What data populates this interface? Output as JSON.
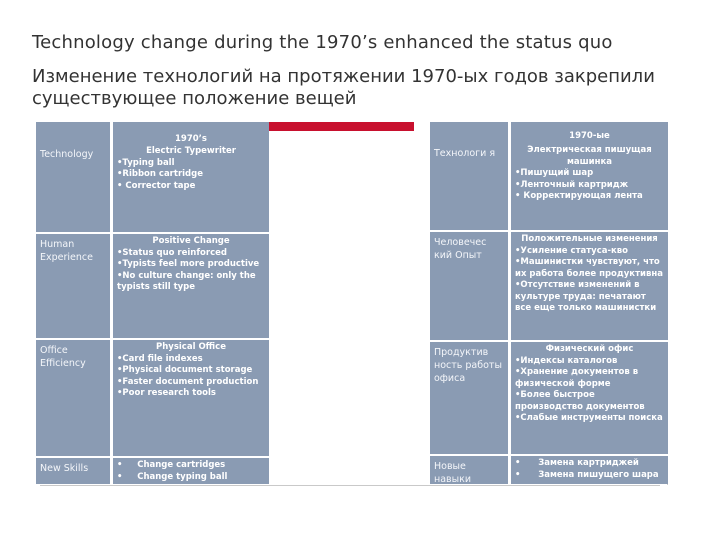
{
  "title_en": "Technology change during the 1970’s enhanced the status quo",
  "title_ru": "Изменение технологий на протяжении 1970-ых годов закрепили существующее положение вещей",
  "table_en": {
    "header": "1970’s",
    "rows": [
      {
        "label": "Technology",
        "heading": "Electric Typewriter",
        "items": [
          "•Typing ball",
          "•Ribbon cartridge",
          "• Corrector tape"
        ]
      },
      {
        "label": "Human Experience",
        "heading": "Positive Change",
        "items": [
          "•Status quo reinforced",
          "•Typists feel more productive",
          "•No culture change: only the typists still type"
        ]
      },
      {
        "label": "Office Efficiency",
        "heading": "Physical Office",
        "items": [
          "•Card file indexes",
          "•Physical document storage",
          "•Faster document production",
          "•Poor research tools"
        ]
      },
      {
        "label": "New Skills",
        "heading": "",
        "items": [
          "•     Change cartridges",
          "•     Change typing ball"
        ]
      }
    ]
  },
  "table_ru": {
    "header": "1970-ые",
    "rows": [
      {
        "label": "Технологи я",
        "heading": "Электрическая пишущая машинка",
        "items": [
          "•Пишущий шар",
          "•Ленточный картридж",
          "• Корректирующая лента"
        ]
      },
      {
        "label": "Человечес кий Опыт",
        "heading": "Положительные изменения",
        "items": [
          "•Усиление статуса-кво",
          "•Машинистки чувствуют, что их работа более продуктивна",
          "•Отсутствие изменений в культуре труда: печатают все еще только машинистки"
        ]
      },
      {
        "label": "Продуктив ность работы офиса",
        "heading": "Физический офис",
        "items": [
          "•Индексы каталогов",
          "•Хранение документов в физической форме",
          "•Более быстрое производство документов",
          "•Слабые инструменты поиска"
        ]
      },
      {
        "label": "Новые навыки",
        "heading": "",
        "items": [
          "•      Замена картриджей",
          "•      Замена пишущего шара"
        ]
      }
    ]
  },
  "colors": {
    "accent_red": "#c8102e",
    "cell_blue": "#8a9bb3"
  }
}
